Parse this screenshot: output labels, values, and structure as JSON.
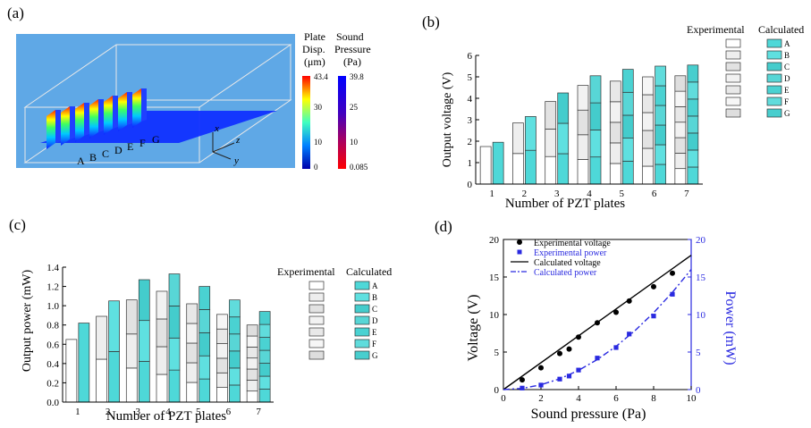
{
  "panel_a": {
    "label": "(a)",
    "plate_labels": [
      "A",
      "B",
      "C",
      "D",
      "E",
      "F",
      "G"
    ],
    "colorbar1": {
      "title1": "Plate",
      "title2": "Disp.",
      "title3": "(μm)",
      "ticks": [
        "43.4",
        "30",
        "10",
        "0"
      ]
    },
    "colorbar2": {
      "title1": "Sound",
      "title2": "Pressure",
      "title3": "(Pa)",
      "ticks": [
        "39.8",
        "25",
        "10",
        "0.085"
      ]
    },
    "axes": {
      "x": "x",
      "y": "y",
      "z": "z"
    },
    "colors": {
      "box_bg": "#5fa8e6",
      "floor": "#1030ff"
    }
  },
  "panel_labels": {
    "b": "(b)",
    "c": "(c)",
    "d": "(d)"
  },
  "legend_segments": [
    "A",
    "B",
    "C",
    "D",
    "E",
    "F",
    "G"
  ],
  "chart_data": [
    {
      "type": "bar",
      "panel": "b",
      "xlabel": "Number of PZT plates",
      "ylabel": "Output voltage (V)",
      "ylim": [
        0,
        6
      ],
      "yticks": [
        "0",
        "1",
        "2",
        "3",
        "4",
        "5",
        "6"
      ],
      "categories": [
        "1",
        "2",
        "3",
        "4",
        "5",
        "6",
        "7"
      ],
      "legend": {
        "experimental": "Experimental",
        "calculated": "Calculated"
      },
      "experimental_totals": [
        1.75,
        2.85,
        3.85,
        4.6,
        4.8,
        5.0,
        5.05
      ],
      "calculated_totals": [
        1.95,
        3.15,
        4.25,
        5.05,
        5.35,
        5.5,
        5.55
      ],
      "colors": {
        "experimental": "#ffffff",
        "calculated": "#4ed8d8",
        "edge": "#333333"
      }
    },
    {
      "type": "bar",
      "panel": "c",
      "xlabel": "Number of PZT plates",
      "ylabel": "Output  power (mW)",
      "ylim": [
        0,
        1.4
      ],
      "yticks": [
        "0.0",
        "0.2",
        "0.4",
        "0.6",
        "0.8",
        "1.0",
        "1.2",
        "1.4"
      ],
      "categories": [
        "1",
        "2",
        "3",
        "4",
        "5",
        "6",
        "7"
      ],
      "legend": {
        "experimental": "Experimental",
        "calculated": "Calculated"
      },
      "experimental_totals": [
        0.65,
        0.89,
        1.06,
        1.15,
        1.02,
        0.91,
        0.8
      ],
      "calculated_totals": [
        0.82,
        1.05,
        1.27,
        1.33,
        1.2,
        1.06,
        0.94
      ],
      "colors": {
        "experimental": "#ffffff",
        "calculated": "#4ed8d8",
        "edge": "#333333"
      }
    },
    {
      "type": "line",
      "panel": "d",
      "xlabel": "Sound pressure (Pa)",
      "ylabel": "Voltage (V)",
      "y2label": "Power (mW)",
      "xlim": [
        0,
        10
      ],
      "ylim": [
        0,
        20
      ],
      "y2lim": [
        0,
        20
      ],
      "xticks": [
        "0",
        "2",
        "4",
        "6",
        "8",
        "10"
      ],
      "yticks": [
        "0",
        "5",
        "10",
        "15",
        "20"
      ],
      "y2ticks": [
        "0",
        "5",
        "10",
        "15",
        "20"
      ],
      "legend_position": "top-left",
      "series": [
        {
          "name": "Experimental voltage",
          "style": "marker-circle",
          "color": "#000000",
          "x": [
            1,
            2,
            3,
            3.5,
            4,
            5,
            6,
            6.7,
            8,
            9
          ],
          "y": [
            1.3,
            2.9,
            4.8,
            5.4,
            7.0,
            8.9,
            10.3,
            11.8,
            13.7,
            15.5
          ]
        },
        {
          "name": "Experimental power",
          "style": "marker-square",
          "color": "#2a2ae0",
          "x": [
            1,
            2,
            3,
            3.5,
            4,
            5,
            6,
            6.7,
            8,
            9
          ],
          "y": [
            0.2,
            0.6,
            1.4,
            1.8,
            2.6,
            4.2,
            5.6,
            7.4,
            9.8,
            12.7
          ]
        },
        {
          "name": "Calculated voltage",
          "style": "line-solid",
          "color": "#000000",
          "x": [
            0,
            10
          ],
          "y": [
            0,
            17.9
          ]
        },
        {
          "name": "Calculated power",
          "style": "line-dashdot",
          "color": "#2a2ae0",
          "x": [
            0,
            1,
            2,
            3,
            4,
            5,
            6,
            7,
            8,
            9,
            10
          ],
          "y": [
            0,
            0.16,
            0.64,
            1.44,
            2.56,
            4.0,
            5.76,
            7.84,
            10.24,
            12.96,
            16.0
          ]
        }
      ]
    }
  ]
}
